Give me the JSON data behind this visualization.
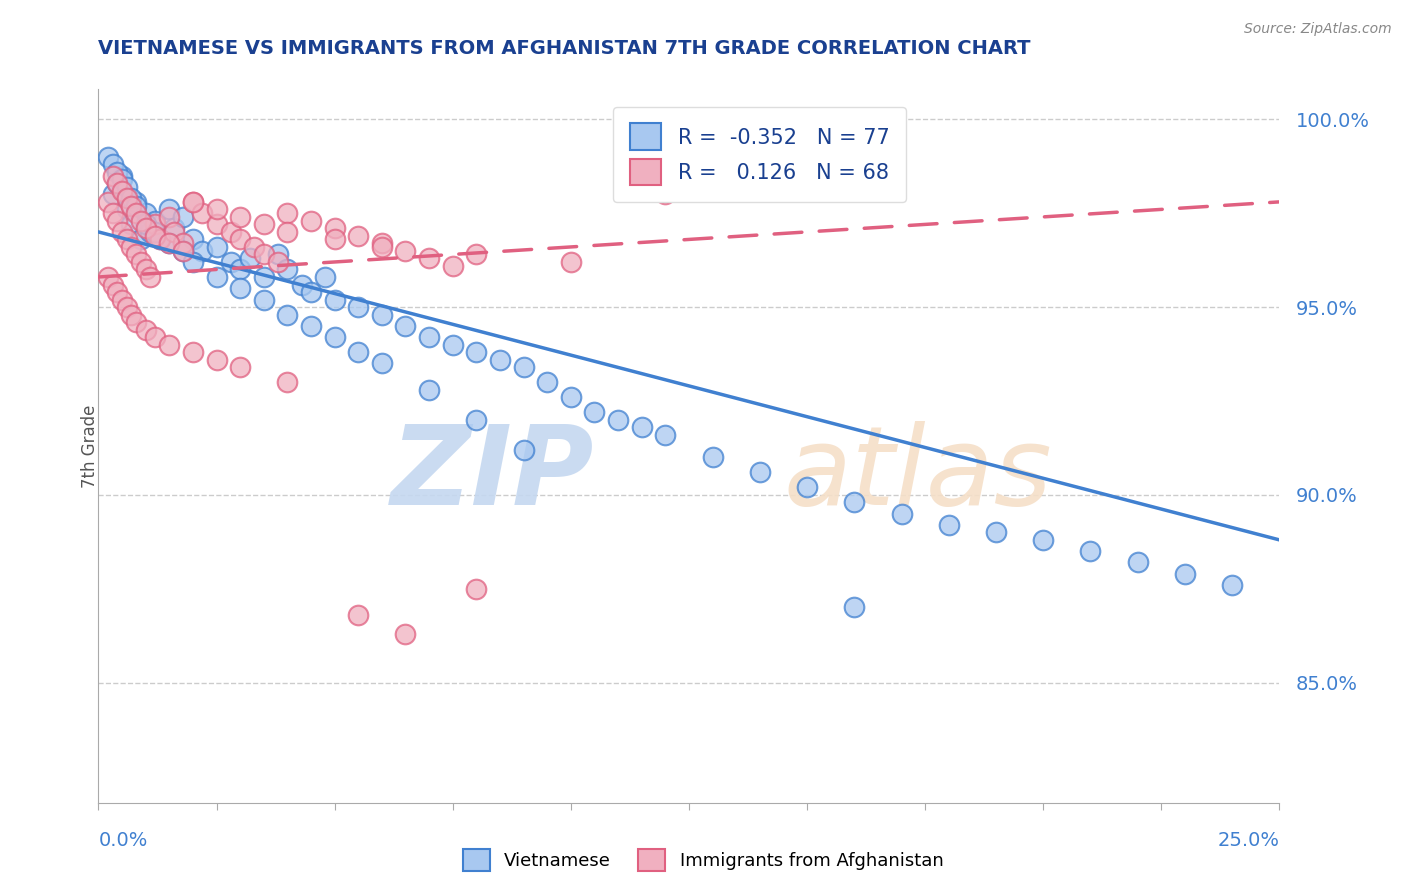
{
  "title": "VIETNAMESE VS IMMIGRANTS FROM AFGHANISTAN 7TH GRADE CORRELATION CHART",
  "source": "Source: ZipAtlas.com",
  "ylabel": "7th Grade",
  "yaxis_labels": [
    "100.0%",
    "95.0%",
    "90.0%",
    "85.0%"
  ],
  "yaxis_values": [
    1.0,
    0.95,
    0.9,
    0.85
  ],
  "xlim": [
    0.0,
    0.25
  ],
  "ylim": [
    0.818,
    1.008
  ],
  "legend_blue_label": "Vietnamese",
  "legend_pink_label": "Immigrants from Afghanistan",
  "R_blue": -0.352,
  "N_blue": 77,
  "R_pink": 0.126,
  "N_pink": 68,
  "blue_color": "#a8c8f0",
  "pink_color": "#f0b0c0",
  "blue_line_color": "#4080d0",
  "pink_line_color": "#e06080",
  "background_color": "#ffffff",
  "grid_color": "#cccccc",
  "title_color": "#1a4090",
  "axis_label_color": "#4080d0",
  "blue_line_x0": 0.0,
  "blue_line_y0": 0.97,
  "blue_line_x1": 0.25,
  "blue_line_y1": 0.888,
  "pink_line_x0": 0.0,
  "pink_line_y0": 0.958,
  "pink_line_x1": 0.25,
  "pink_line_y1": 0.978,
  "watermark_zip_color": "#c5d8f0",
  "watermark_atlas_color": "#f5dfc8",
  "blue_scatter_x": [
    0.003,
    0.004,
    0.005,
    0.006,
    0.007,
    0.008,
    0.009,
    0.01,
    0.011,
    0.012,
    0.013,
    0.015,
    0.016,
    0.018,
    0.02,
    0.022,
    0.025,
    0.028,
    0.03,
    0.032,
    0.035,
    0.038,
    0.04,
    0.043,
    0.045,
    0.048,
    0.05,
    0.055,
    0.06,
    0.065,
    0.07,
    0.075,
    0.08,
    0.085,
    0.09,
    0.095,
    0.1,
    0.105,
    0.11,
    0.115,
    0.12,
    0.13,
    0.14,
    0.15,
    0.16,
    0.17,
    0.18,
    0.19,
    0.2,
    0.21,
    0.22,
    0.23,
    0.24,
    0.002,
    0.003,
    0.004,
    0.005,
    0.006,
    0.007,
    0.008,
    0.01,
    0.012,
    0.015,
    0.018,
    0.02,
    0.025,
    0.03,
    0.035,
    0.04,
    0.045,
    0.05,
    0.055,
    0.06,
    0.07,
    0.08,
    0.09,
    0.16
  ],
  "blue_scatter_y": [
    0.98,
    0.983,
    0.985,
    0.976,
    0.972,
    0.978,
    0.968,
    0.975,
    0.97,
    0.973,
    0.968,
    0.976,
    0.971,
    0.974,
    0.968,
    0.965,
    0.966,
    0.962,
    0.96,
    0.963,
    0.958,
    0.964,
    0.96,
    0.956,
    0.954,
    0.958,
    0.952,
    0.95,
    0.948,
    0.945,
    0.942,
    0.94,
    0.938,
    0.936,
    0.934,
    0.93,
    0.926,
    0.922,
    0.92,
    0.918,
    0.916,
    0.91,
    0.906,
    0.902,
    0.898,
    0.895,
    0.892,
    0.89,
    0.888,
    0.885,
    0.882,
    0.879,
    0.876,
    0.99,
    0.988,
    0.986,
    0.984,
    0.982,
    0.979,
    0.977,
    0.972,
    0.97,
    0.967,
    0.965,
    0.962,
    0.958,
    0.955,
    0.952,
    0.948,
    0.945,
    0.942,
    0.938,
    0.935,
    0.928,
    0.92,
    0.912,
    0.87
  ],
  "pink_scatter_x": [
    0.002,
    0.003,
    0.004,
    0.005,
    0.006,
    0.007,
    0.008,
    0.009,
    0.01,
    0.011,
    0.012,
    0.013,
    0.015,
    0.016,
    0.018,
    0.02,
    0.022,
    0.025,
    0.028,
    0.03,
    0.033,
    0.035,
    0.038,
    0.04,
    0.045,
    0.05,
    0.055,
    0.06,
    0.065,
    0.07,
    0.075,
    0.003,
    0.004,
    0.005,
    0.006,
    0.007,
    0.008,
    0.009,
    0.01,
    0.012,
    0.015,
    0.018,
    0.02,
    0.025,
    0.03,
    0.035,
    0.04,
    0.05,
    0.06,
    0.08,
    0.1,
    0.002,
    0.003,
    0.004,
    0.005,
    0.006,
    0.007,
    0.008,
    0.01,
    0.012,
    0.015,
    0.02,
    0.025,
    0.03,
    0.04,
    0.055,
    0.065,
    0.08,
    0.12
  ],
  "pink_scatter_y": [
    0.978,
    0.975,
    0.973,
    0.97,
    0.968,
    0.966,
    0.964,
    0.962,
    0.96,
    0.958,
    0.972,
    0.968,
    0.974,
    0.97,
    0.967,
    0.978,
    0.975,
    0.972,
    0.97,
    0.968,
    0.966,
    0.964,
    0.962,
    0.975,
    0.973,
    0.971,
    0.969,
    0.967,
    0.965,
    0.963,
    0.961,
    0.985,
    0.983,
    0.981,
    0.979,
    0.977,
    0.975,
    0.973,
    0.971,
    0.969,
    0.967,
    0.965,
    0.978,
    0.976,
    0.974,
    0.972,
    0.97,
    0.968,
    0.966,
    0.964,
    0.962,
    0.958,
    0.956,
    0.954,
    0.952,
    0.95,
    0.948,
    0.946,
    0.944,
    0.942,
    0.94,
    0.938,
    0.936,
    0.934,
    0.93,
    0.868,
    0.863,
    0.875,
    0.98
  ]
}
